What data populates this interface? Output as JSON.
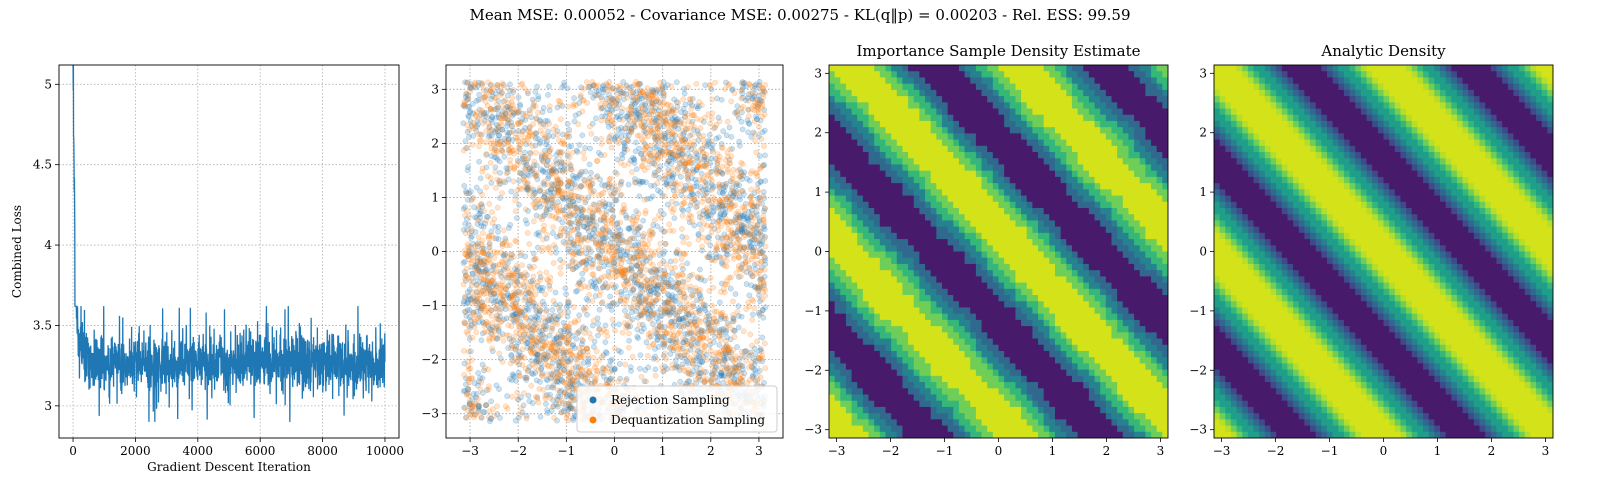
{
  "suptitle": "Mean MSE: 0.00052 - Covariance MSE: 0.00275 - KL(q‖p) = 0.00203 - Rel. ESS: 99.59",
  "colors": {
    "blue": "#1f77b4",
    "orange": "#ff7f0e",
    "viridis": [
      "#481a6c",
      "#3e4a89",
      "#31688e",
      "#26828e",
      "#1f9e89",
      "#35b779",
      "#6ece58",
      "#b5de2b",
      "#d4e21a"
    ]
  },
  "chart_data": [
    {
      "type": "line",
      "title": "",
      "xlabel": "Gradient Descent Iteration",
      "ylabel": "Combined Loss",
      "xlim": [
        -450,
        10450
      ],
      "ylim": [
        2.8,
        5.12
      ],
      "xticks": [
        0,
        2000,
        4000,
        6000,
        8000,
        10000
      ],
      "yticks": [
        3.0,
        3.5,
        4.0,
        4.5,
        5.0
      ],
      "grid": true,
      "series": [
        {
          "color": "#1f77b4",
          "x": [
            0,
            20,
            40,
            60,
            80,
            100,
            130,
            160,
            200,
            250,
            300,
            400,
            500,
            700,
            1000,
            1500,
            2000,
            3000,
            4000,
            5000,
            6000,
            7000,
            8000,
            9000,
            10000
          ],
          "y": [
            5.01,
            4.7,
            4.3,
            4.05,
            3.85,
            3.65,
            3.55,
            3.45,
            3.4,
            3.35,
            3.33,
            3.3,
            3.3,
            3.28,
            3.28,
            3.27,
            3.27,
            3.27,
            3.27,
            3.27,
            3.27,
            3.27,
            3.27,
            3.27,
            3.27
          ],
          "noise_band": {
            "low": 3.05,
            "high": 3.5
          },
          "min_value": 2.9,
          "max_late_value": 3.62
        }
      ]
    },
    {
      "type": "scatter",
      "title": "",
      "xlabel": "",
      "ylabel": "",
      "xlim": [
        -3.5,
        3.5
      ],
      "ylim": [
        -3.45,
        3.45
      ],
      "xticks": [
        -3,
        -2,
        -1,
        0,
        1,
        2,
        3
      ],
      "yticks": [
        -3,
        -2,
        -1,
        0,
        1,
        2,
        3
      ],
      "grid": true,
      "legend": "lower-right",
      "series": [
        {
          "name": "Rejection Sampling",
          "color": "#1f77b4",
          "points": 2600,
          "domain": [
            -3.14,
            3.14
          ]
        },
        {
          "name": "Dequantization Sampling",
          "color": "#ff7f0e",
          "points": 2600,
          "domain": [
            -3.14,
            3.14
          ]
        }
      ]
    },
    {
      "type": "heatmap",
      "title": "Importance Sample Density Estimate",
      "xlim": [
        -3.14,
        3.14
      ],
      "ylim": [
        -3.14,
        3.14
      ],
      "xticks": [
        -3,
        -2,
        -1,
        0,
        1,
        2,
        3
      ],
      "yticks": [
        -3,
        -2,
        -1,
        0,
        1,
        2,
        3
      ],
      "contour_levels": 6,
      "noise": true
    },
    {
      "type": "heatmap",
      "title": "Analytic Density",
      "xlim": [
        -3.14,
        3.14
      ],
      "ylim": [
        -3.14,
        3.14
      ],
      "xticks": [
        -3,
        -2,
        -1,
        0,
        1,
        2,
        3
      ],
      "yticks": [
        -3,
        -2,
        -1,
        0,
        1,
        2,
        3
      ],
      "contour_levels": 9,
      "noise": false
    }
  ]
}
